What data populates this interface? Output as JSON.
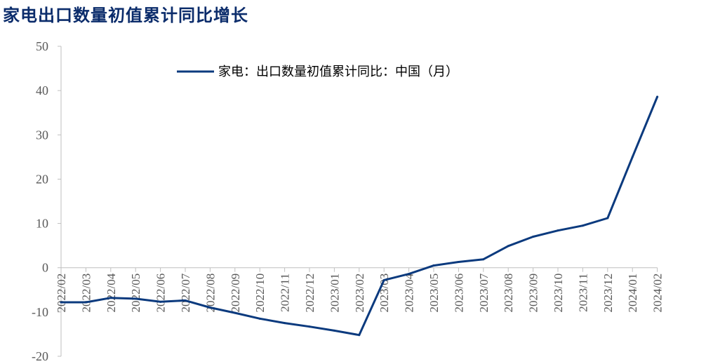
{
  "header": {
    "title": "家电出口数量初值累计同比增长"
  },
  "chart_data": {
    "type": "line",
    "title": "",
    "xlabel": "",
    "ylabel": "",
    "ylim": [
      -20,
      50
    ],
    "yticks": [
      -20,
      -10,
      0,
      10,
      20,
      30,
      40,
      50
    ],
    "grid": false,
    "legend_position": "top",
    "categories": [
      "2022/02",
      "2022/03",
      "2022/04",
      "2022/05",
      "2022/06",
      "2022/07",
      "2022/08",
      "2022/09",
      "2022/10",
      "2022/11",
      "2022/12",
      "2023/01",
      "2023/02",
      "2023/03",
      "2023/04",
      "2023/05",
      "2023/06",
      "2023/07",
      "2023/08",
      "2023/09",
      "2023/10",
      "2023/11",
      "2023/12",
      "2024/01",
      "2024/02"
    ],
    "series": [
      {
        "name": "家电：出口数量初值累计同比：中国（月）",
        "color": "#0b3a7e",
        "values": [
          -7.8,
          -7.8,
          -6.8,
          -7.0,
          -7.7,
          -7.4,
          -9.0,
          -10.2,
          -11.5,
          -12.5,
          -13.3,
          -14.2,
          -15.2,
          -2.8,
          -1.4,
          0.5,
          1.3,
          1.9,
          4.9,
          7.0,
          8.4,
          9.5,
          11.2,
          25.0,
          38.6
        ]
      }
    ]
  }
}
